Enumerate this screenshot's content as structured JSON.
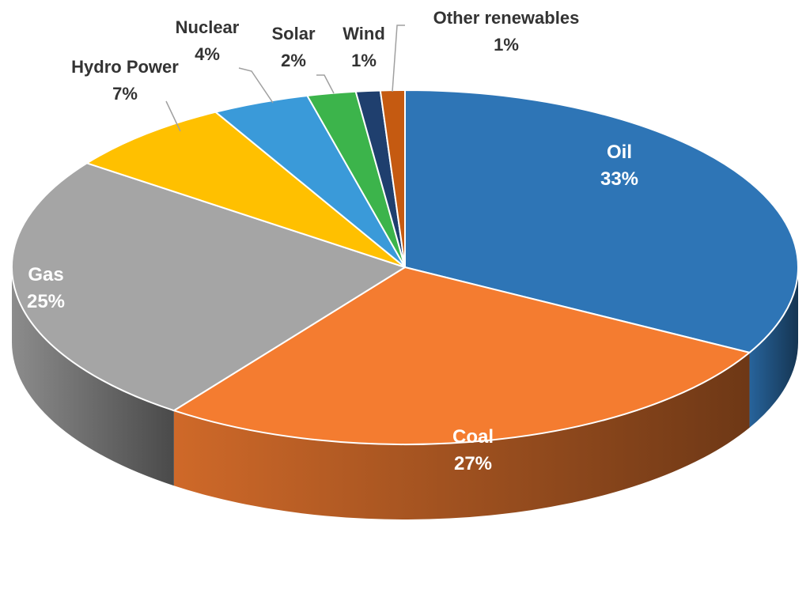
{
  "chart_data": {
    "type": "pie",
    "style": "3d",
    "title": "",
    "start": "top, clockwise",
    "slices": [
      {
        "label": "Oil",
        "value": 33,
        "value_label": "33%",
        "color": "#2e75b6"
      },
      {
        "label": "Coal",
        "value": 27,
        "value_label": "27%",
        "color": "#f47c30"
      },
      {
        "label": "Gas",
        "value": 25,
        "value_label": "25%",
        "color": "#a5a5a5"
      },
      {
        "label": "Hydro Power",
        "value": 7,
        "value_label": "7%",
        "color": "#ffc000"
      },
      {
        "label": "Nuclear",
        "value": 4,
        "value_label": "4%",
        "color": "#3a9ad9"
      },
      {
        "label": "Solar",
        "value": 2,
        "value_label": "2%",
        "color": "#3cb44b"
      },
      {
        "label": "Wind",
        "value": 1,
        "value_label": "1%",
        "color": "#1f3f6e"
      },
      {
        "label": "Other renewables",
        "value": 1,
        "value_label": "1%",
        "color": "#c55a11"
      }
    ]
  }
}
